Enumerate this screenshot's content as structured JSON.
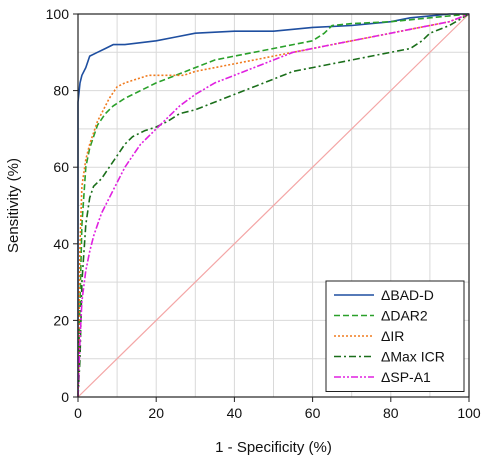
{
  "chart_data": {
    "type": "line",
    "title": "",
    "xlabel": "1 - Specificity (%)",
    "ylabel": "Sensitivity (%)",
    "xlim": [
      0,
      100
    ],
    "ylim": [
      0,
      100
    ],
    "xticks": [
      "0",
      "20",
      "40",
      "60",
      "80",
      "100"
    ],
    "yticks": [
      "0",
      "20",
      "40",
      "60",
      "80",
      "100"
    ],
    "grid": true,
    "legend_position": "bottom-right",
    "reference_line": {
      "x": [
        0,
        100
      ],
      "y": [
        0,
        100
      ],
      "color": "#f4a6a6"
    },
    "series": [
      {
        "name": "ΔBAD-D",
        "color": "#1f4fa0",
        "style": "solid",
        "x": [
          0,
          0,
          0.5,
          1,
          2,
          3,
          5,
          7,
          9,
          12,
          16,
          20,
          25,
          30,
          40,
          50,
          55,
          60,
          70,
          80,
          85,
          90,
          95,
          100
        ],
        "y": [
          0,
          77,
          82,
          84,
          86,
          89,
          90,
          91,
          92,
          92,
          92.5,
          93,
          94,
          95,
          95.5,
          95.5,
          96,
          96.5,
          97,
          98,
          99,
          99.5,
          100,
          100
        ]
      },
      {
        "name": "ΔDAR2",
        "color": "#2aa02a",
        "style": "dashed",
        "x": [
          0,
          0.5,
          1,
          2,
          3,
          4,
          5,
          7,
          9,
          12,
          16,
          20,
          25,
          30,
          35,
          40,
          45,
          50,
          55,
          60,
          63,
          65,
          70,
          80,
          90,
          100
        ],
        "y": [
          0,
          25,
          45,
          60,
          65,
          68,
          71,
          74,
          76,
          78,
          80,
          82,
          84,
          86,
          88,
          89,
          90,
          91,
          92,
          93,
          95,
          97,
          97.5,
          98,
          99,
          100
        ]
      },
      {
        "name": "ΔIR",
        "color": "#f07b1f",
        "style": "dotted",
        "x": [
          0,
          0.5,
          1,
          2,
          3,
          4,
          5,
          6,
          7,
          8,
          10,
          12,
          15,
          18,
          21,
          24,
          27,
          30,
          35,
          40,
          45,
          50,
          55,
          60,
          65,
          70,
          75,
          80,
          85,
          90,
          95,
          100
        ],
        "y": [
          0,
          40,
          55,
          62,
          66,
          69,
          72,
          74,
          76,
          78,
          81,
          82,
          83,
          84,
          84,
          84,
          84,
          85,
          86,
          87,
          88,
          89,
          90,
          91,
          92,
          93,
          94,
          95,
          96,
          97,
          98,
          100
        ]
      },
      {
        "name": "ΔMax ICR",
        "color": "#1a6e1a",
        "style": "dashdot",
        "x": [
          0,
          0.5,
          1,
          2,
          3,
          4,
          6,
          8,
          10,
          12,
          14,
          17,
          20,
          23,
          26,
          30,
          35,
          40,
          45,
          50,
          55,
          60,
          65,
          70,
          75,
          80,
          85,
          88,
          90,
          95,
          100
        ],
        "y": [
          0,
          10,
          30,
          45,
          52,
          55,
          57,
          60,
          63,
          66,
          68,
          69.5,
          70.5,
          72,
          74,
          75,
          77,
          79,
          81,
          83,
          85,
          86,
          87,
          88,
          89,
          90,
          91,
          93,
          95,
          97,
          100
        ]
      },
      {
        "name": "ΔSP-A1",
        "color": "#e020e0",
        "style": "dashdotdot",
        "x": [
          0,
          0.5,
          1,
          2,
          3,
          4,
          5,
          6,
          8,
          10,
          12,
          14,
          16,
          18,
          20,
          23,
          26,
          30,
          35,
          40,
          45,
          50,
          55,
          60,
          65,
          70,
          75,
          80,
          85,
          90,
          95,
          100
        ],
        "y": [
          0,
          15,
          25,
          33,
          38,
          42,
          45,
          48,
          52,
          56,
          60,
          63,
          66,
          68,
          70,
          73,
          76,
          79,
          82,
          84,
          86,
          88,
          90,
          91,
          92,
          93,
          94,
          95,
          96,
          97,
          98,
          100
        ]
      }
    ]
  }
}
